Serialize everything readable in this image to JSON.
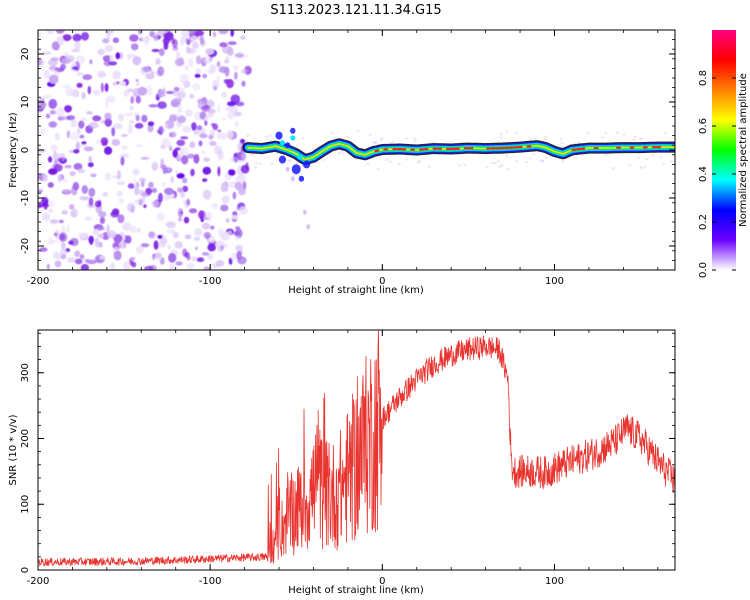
{
  "figure": {
    "title": "S113.2023.121.11.34.G15"
  },
  "colors": {
    "line": "#e8332e",
    "ridge_core": "#ff2020",
    "ridge_mid": "#00e870",
    "ridge_edge": "#1a1aff",
    "noise": "#8a2be2",
    "frame": "#000000"
  },
  "chart_data": [
    {
      "id": "spectrogram",
      "type": "heatmap",
      "xlabel": "Height of straight line (km)",
      "ylabel": "Frequency (Hz)",
      "xlim": [
        -200,
        170
      ],
      "ylim": [
        -25,
        25
      ],
      "x_ticks": [
        -200,
        -100,
        0,
        100
      ],
      "x_tick_labels": [
        "-200",
        "-100",
        "0",
        "100"
      ],
      "y_ticks": [
        -20,
        -10,
        0,
        10,
        20
      ],
      "y_tick_labels": [
        "-20",
        "-10",
        "0",
        "10",
        "20"
      ],
      "colorbar": {
        "label": "Normalized spectral amplitude",
        "range": [
          0,
          1
        ],
        "ticks": [
          0,
          0.2,
          0.4,
          0.6,
          0.8
        ],
        "tick_labels": [
          "0.0",
          "0.2",
          "0.4",
          "0.6",
          "0.8"
        ],
        "stops": [
          "#ffffff",
          "#6a00ff",
          "#0000ff",
          "#00ffff",
          "#00ff00",
          "#ffff00",
          "#ff8000",
          "#ff0000",
          "#ff0080"
        ]
      },
      "noise_region_x": [
        -200,
        -78
      ],
      "ridge": {
        "x_start": -78,
        "x_end": 170,
        "frequency_track": [
          [
            -78,
            0.5
          ],
          [
            -70,
            0.3
          ],
          [
            -62,
            0.8
          ],
          [
            -55,
            0.0
          ],
          [
            -50,
            -0.8
          ],
          [
            -45,
            -2.0
          ],
          [
            -40,
            -1.5
          ],
          [
            -35,
            -0.3
          ],
          [
            -30,
            0.8
          ],
          [
            -25,
            1.3
          ],
          [
            -20,
            0.8
          ],
          [
            -15,
            -0.6
          ],
          [
            -10,
            -1.0
          ],
          [
            -5,
            -0.3
          ],
          [
            0,
            0.1
          ],
          [
            10,
            0.2
          ],
          [
            20,
            0.0
          ],
          [
            30,
            0.3
          ],
          [
            40,
            0.2
          ],
          [
            50,
            0.4
          ],
          [
            60,
            0.3
          ],
          [
            70,
            0.4
          ],
          [
            80,
            0.6
          ],
          [
            90,
            0.9
          ],
          [
            95,
            0.5
          ],
          [
            100,
            -0.3
          ],
          [
            105,
            -0.8
          ],
          [
            110,
            0.0
          ],
          [
            120,
            0.4
          ],
          [
            130,
            0.4
          ],
          [
            140,
            0.5
          ],
          [
            150,
            0.5
          ],
          [
            160,
            0.6
          ],
          [
            170,
            0.6
          ]
        ]
      }
    },
    {
      "id": "snr",
      "type": "line",
      "xlabel": "Height of straight line (km)",
      "ylabel": "SNR (10 * v/v)",
      "xlim": [
        -200,
        170
      ],
      "ylim": [
        0,
        365
      ],
      "x_ticks": [
        -200,
        -100,
        0,
        100
      ],
      "x_tick_labels": [
        "-200",
        "-100",
        "0",
        "100"
      ],
      "y_ticks": [
        0,
        100,
        200,
        300
      ],
      "y_tick_labels": [
        "0",
        "100",
        "200",
        "300"
      ],
      "series": [
        {
          "envelope": [
            [
              -200,
              12
            ],
            [
              -150,
              13
            ],
            [
              -120,
              15
            ],
            [
              -100,
              17
            ],
            [
              -80,
              19
            ],
            [
              -67,
              20
            ],
            [
              -63,
              40
            ],
            [
              -55,
              80
            ],
            [
              -45,
              100
            ],
            [
              -38,
              130
            ],
            [
              -30,
              110
            ],
            [
              -25,
              120
            ],
            [
              -18,
              150
            ],
            [
              -10,
              185
            ],
            [
              -5,
              210
            ],
            [
              0,
              230
            ],
            [
              10,
              262
            ],
            [
              20,
              290
            ],
            [
              30,
              313
            ],
            [
              40,
              327
            ],
            [
              50,
              335
            ],
            [
              60,
              340
            ],
            [
              68,
              335
            ],
            [
              73,
              290
            ],
            [
              75,
              160
            ],
            [
              77,
              150
            ],
            [
              85,
              150
            ],
            [
              95,
              148
            ],
            [
              105,
              160
            ],
            [
              115,
              170
            ],
            [
              125,
              180
            ],
            [
              135,
              195
            ],
            [
              142,
              215
            ],
            [
              150,
              200
            ],
            [
              160,
              165
            ],
            [
              170,
              135
            ]
          ]
        }
      ]
    }
  ]
}
